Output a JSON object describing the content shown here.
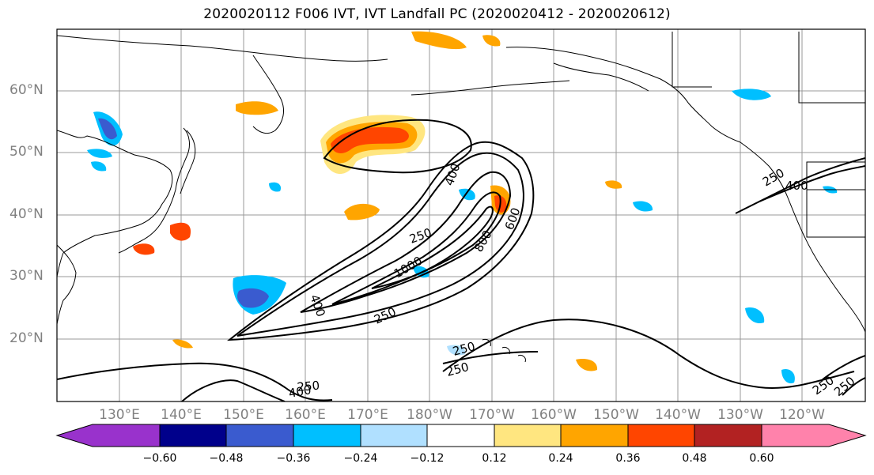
{
  "title": "2020020112 F006 IVT, IVT Landfall PC (2020020412 - 2020020612)",
  "map": {
    "lat_labels": [
      "60°N",
      "50°N",
      "40°N",
      "30°N",
      "20°N"
    ],
    "lon_labels": [
      "130°E",
      "140°E",
      "150°E",
      "160°E",
      "170°E",
      "180°W",
      "170°W",
      "160°W",
      "150°W",
      "140°W",
      "130°W",
      "120°W"
    ],
    "contour_labels": [
      "400",
      "600",
      "800",
      "250",
      "1000",
      "400",
      "250",
      "250",
      "250",
      "400",
      "250",
      "250",
      "250",
      "400",
      "250"
    ]
  },
  "colorbar": {
    "ticks": [
      "−0.60",
      "−0.48",
      "−0.36",
      "−0.24",
      "−0.12",
      "0.12",
      "0.24",
      "0.36",
      "0.48",
      "0.60"
    ],
    "colors": [
      "#9932cc",
      "#00008b",
      "#3a5bcf",
      "#00bfff",
      "#b0e0ff",
      "#ffffff",
      "#ffe680",
      "#ffa500",
      "#ff4500",
      "#b22222",
      "#ff82ab"
    ]
  },
  "colors": {
    "positive_light": "#ffe680",
    "positive_mid": "#ffa500",
    "positive_strong": "#ff4500",
    "negative_light": "#b0e0ff",
    "negative_mid": "#00bfff",
    "negative_strong": "#3a5bcf",
    "negative_extreme": "#9932cc",
    "grid": "#999999",
    "coast": "#000000"
  }
}
